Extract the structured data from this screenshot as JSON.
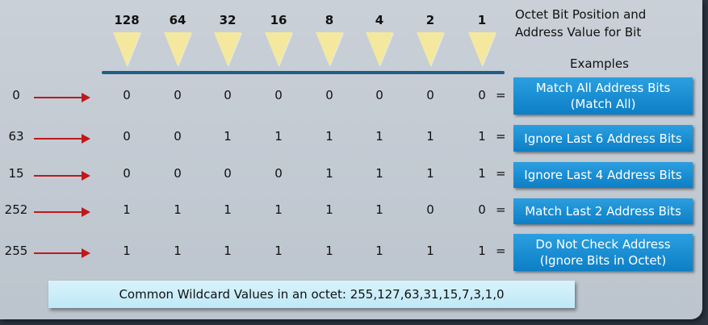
{
  "header": {
    "line1": "Octet Bit Position and",
    "line2": "Address Value for Bit",
    "examples_label": "Examples"
  },
  "bit_positions": [
    "128",
    "64",
    "32",
    "16",
    "8",
    "4",
    "2",
    "1"
  ],
  "equals_sign": "=",
  "rows": [
    {
      "decimal": "0",
      "bits": [
        "0",
        "0",
        "0",
        "0",
        "0",
        "0",
        "0",
        "0"
      ],
      "example": "Match All Address Bits\n(Match All)"
    },
    {
      "decimal": "63",
      "bits": [
        "0",
        "0",
        "1",
        "1",
        "1",
        "1",
        "1",
        "1"
      ],
      "example": "Ignore Last 6 Address Bits"
    },
    {
      "decimal": "15",
      "bits": [
        "0",
        "0",
        "0",
        "0",
        "1",
        "1",
        "1",
        "1"
      ],
      "example": "Ignore Last 4 Address Bits"
    },
    {
      "decimal": "252",
      "bits": [
        "1",
        "1",
        "1",
        "1",
        "1",
        "1",
        "0",
        "0"
      ],
      "example": "Match Last 2 Address Bits"
    },
    {
      "decimal": "255",
      "bits": [
        "1",
        "1",
        "1",
        "1",
        "1",
        "1",
        "1",
        "1"
      ],
      "example": "Do Not Check Address\n(Ignore Bits in Octet)"
    }
  ],
  "common_values": "Common Wildcard Values in an octet: 255,127,63,31,15,7,3,1,0",
  "colors": {
    "triangle": "#f4e89e",
    "arrow": "#c0181b",
    "example_button": "#0d7fc6",
    "divider_bar": "#1f5e85"
  }
}
